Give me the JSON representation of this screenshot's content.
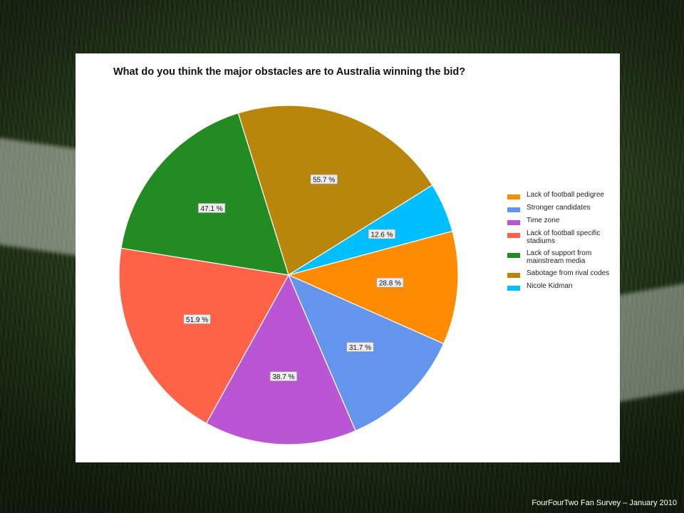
{
  "footer": "FourFourTwo Fan Survey – January 2010",
  "chart_data": {
    "type": "pie",
    "title": "What do you think the major obstacles are to Australia winning the bid?",
    "value_suffix": " %",
    "legend_position": "right",
    "slices": [
      {
        "label": "Lack of football pedigree",
        "value": 28.8,
        "color": "#FF8C00"
      },
      {
        "label": "Stronger candidates",
        "value": 31.7,
        "color": "#6495ED"
      },
      {
        "label": "Time zone",
        "value": 38.7,
        "color": "#BA55D3"
      },
      {
        "label": "Lack of football specific stadiums",
        "value": 51.9,
        "color": "#FF6347"
      },
      {
        "label": "Lack of support from mainstream media",
        "value": 47.1,
        "color": "#228B22"
      },
      {
        "label": "Sabotage from rival codes",
        "value": 55.7,
        "color": "#B8860B"
      },
      {
        "label": "Nicole Kidman",
        "value": 12.6,
        "color": "#00BFFF"
      }
    ]
  }
}
